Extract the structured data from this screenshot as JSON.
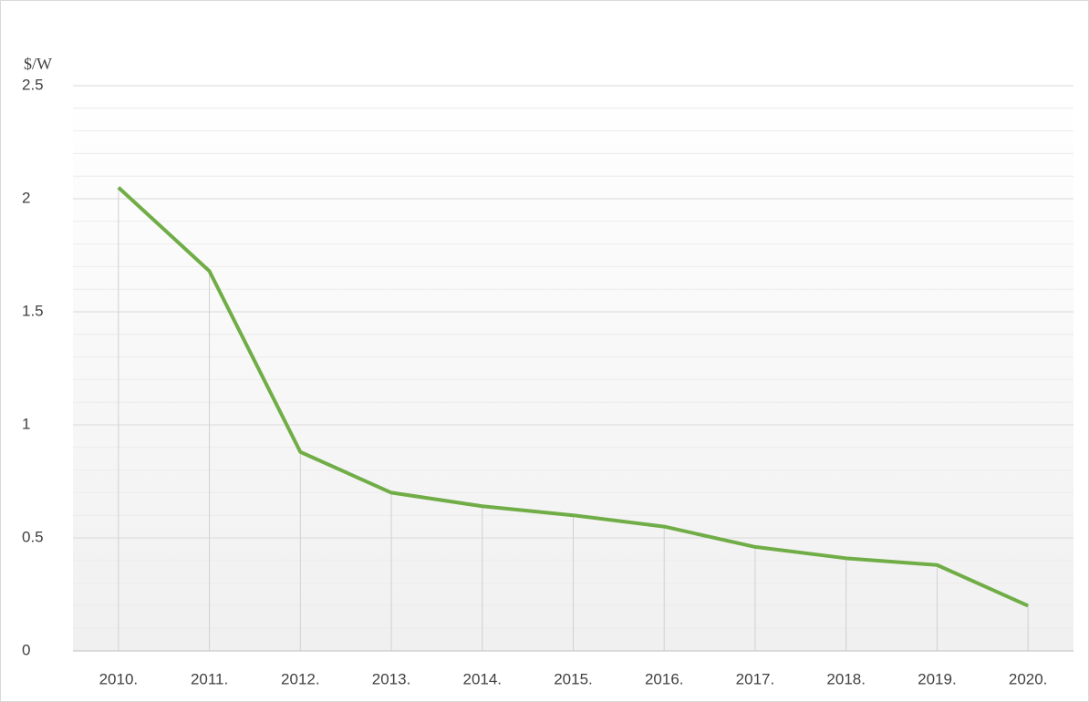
{
  "chart_data": {
    "type": "line",
    "y_unit_label": "$/W",
    "categories": [
      "2010.",
      "2011.",
      "2012.",
      "2013.",
      "2014.",
      "2015.",
      "2016.",
      "2017.",
      "2018.",
      "2019.",
      "2020."
    ],
    "values": [
      2.05,
      1.68,
      0.88,
      0.7,
      0.64,
      0.6,
      0.55,
      0.46,
      0.41,
      0.38,
      0.2
    ],
    "color": "#70ad47",
    "ylim": [
      0,
      2.5
    ],
    "yticks": [
      0,
      0.5,
      1,
      1.5,
      2,
      2.5
    ],
    "grid": true,
    "minor_grid": true,
    "drop_lines": true
  }
}
